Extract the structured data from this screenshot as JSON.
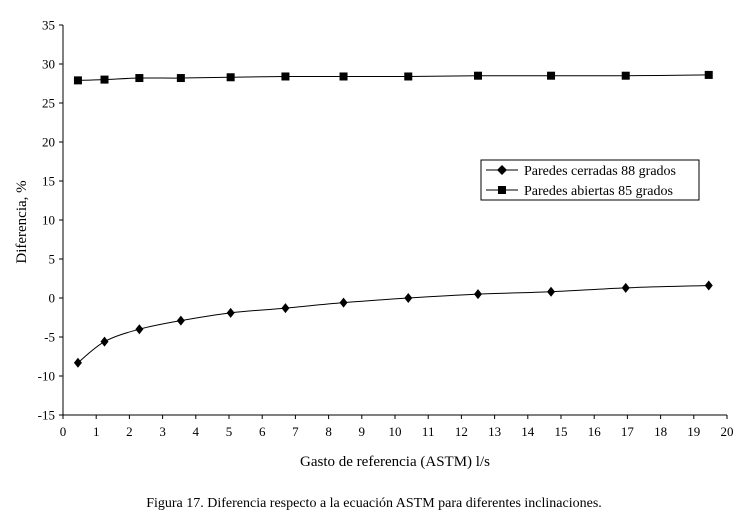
{
  "chart_data": {
    "type": "line",
    "xlabel": "Gasto de referencia (ASTM) l/s",
    "ylabel": "Diferencia, %",
    "xlim": [
      0,
      20
    ],
    "ylim": [
      -15,
      35
    ],
    "x_ticks": [
      "0",
      "1",
      "2",
      "3",
      "4",
      "5",
      "6",
      "7",
      "8",
      "9",
      "10",
      "11",
      "12",
      "13",
      "14",
      "15",
      "16",
      "17",
      "18",
      "19",
      "20"
    ],
    "y_ticks": [
      "35",
      "30",
      "25",
      "20",
      "15",
      "10",
      "5",
      "0",
      "-5",
      "-10",
      "-15"
    ],
    "grid": false,
    "legend_position": "right",
    "series": [
      {
        "name": "Paredes cerradas 88 grados",
        "marker": "diamond",
        "x": [
          0.45,
          1.25,
          2.3,
          3.55,
          5.05,
          6.7,
          8.45,
          10.4,
          12.5,
          14.7,
          16.95,
          19.45
        ],
        "y": [
          -8.3,
          -5.6,
          -4.0,
          -2.9,
          -1.9,
          -1.3,
          -0.6,
          0.0,
          0.5,
          0.8,
          1.3,
          1.6
        ]
      },
      {
        "name": "Paredes abiertas 85 grados",
        "marker": "square",
        "x": [
          0.45,
          1.25,
          2.3,
          3.55,
          5.05,
          6.7,
          8.45,
          10.4,
          12.5,
          14.7,
          16.95,
          19.45
        ],
        "y": [
          27.9,
          28.0,
          28.2,
          28.2,
          28.3,
          28.4,
          28.4,
          28.4,
          28.5,
          28.5,
          28.5,
          28.6
        ]
      }
    ]
  },
  "caption": "Figura 17. Diferencia respecto a la ecuación ASTM para diferentes inclinaciones."
}
